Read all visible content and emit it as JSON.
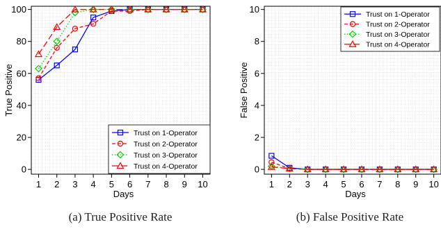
{
  "chart_data": [
    {
      "type": "line",
      "caption": "(a) True Positive Rate",
      "xlabel": "Days",
      "ylabel": "True Positive",
      "x": [
        1,
        2,
        3,
        4,
        5,
        6,
        7,
        8,
        9,
        10
      ],
      "xticks": [
        "1",
        "2",
        "3",
        "4",
        "5",
        "6",
        "7",
        "8",
        "9",
        "10"
      ],
      "yticks": [
        "0",
        "20",
        "40",
        "60",
        "80",
        "100"
      ],
      "xlim": [
        0.6,
        10.4
      ],
      "ylim": [
        -3,
        102
      ],
      "grid": true,
      "legend": "bottom-right",
      "series": [
        {
          "name": "Trust on 1-Operator",
          "color": "#0000ff",
          "dash": "solid",
          "marker": "square",
          "values": [
            56,
            65,
            75,
            95,
            99,
            100,
            100,
            100,
            100,
            100
          ]
        },
        {
          "name": "Trust on 2-Operator",
          "color": "#ff0000",
          "dash": "dashed",
          "marker": "circle",
          "values": [
            57,
            76,
            88,
            91,
            99,
            99,
            100,
            100,
            100,
            100
          ]
        },
        {
          "name": "Trust on 3-Operator",
          "color": "#00cc00",
          "dash": "dotted",
          "marker": "diamond",
          "values": [
            63,
            80,
            98,
            100,
            100,
            100,
            100,
            100,
            100,
            100
          ]
        },
        {
          "name": "Trust on 4-Operator",
          "color": "#ff0000",
          "dash": "longdash",
          "marker": "triangle",
          "values": [
            72,
            89,
            100,
            100,
            100,
            100,
            100,
            100,
            100,
            100
          ]
        }
      ]
    },
    {
      "type": "line",
      "caption": "(b) False Positive Rate",
      "xlabel": "Days",
      "ylabel": "False Positive",
      "x": [
        1,
        2,
        3,
        4,
        5,
        6,
        7,
        8,
        9,
        10
      ],
      "xticks": [
        "1",
        "2",
        "3",
        "4",
        "5",
        "6",
        "7",
        "8",
        "9",
        "10"
      ],
      "yticks": [
        "0",
        "2",
        "4",
        "6",
        "8",
        "10"
      ],
      "xlim": [
        0.6,
        10.4
      ],
      "ylim": [
        -0.3,
        10.2
      ],
      "grid": true,
      "legend": "top-right",
      "series": [
        {
          "name": "Trust on 1-Operator",
          "color": "#0000ff",
          "dash": "solid",
          "marker": "square",
          "values": [
            0.85,
            0.1,
            0,
            0,
            0,
            0,
            0,
            0,
            0,
            0
          ]
        },
        {
          "name": "Trust on 2-Operator",
          "color": "#ff0000",
          "dash": "dashed",
          "marker": "circle",
          "values": [
            0.45,
            0.05,
            0,
            0,
            0,
            0,
            0,
            0,
            0,
            0
          ]
        },
        {
          "name": "Trust on 3-Operator",
          "color": "#00cc00",
          "dash": "dotted",
          "marker": "diamond",
          "values": [
            0.2,
            0.05,
            0,
            0,
            0,
            0,
            0,
            0,
            0,
            0
          ]
        },
        {
          "name": "Trust on 4-Operator",
          "color": "#ff0000",
          "dash": "longdash",
          "marker": "triangle",
          "values": [
            0.15,
            0.05,
            0,
            0,
            0,
            0,
            0,
            0,
            0,
            0
          ]
        }
      ]
    }
  ]
}
